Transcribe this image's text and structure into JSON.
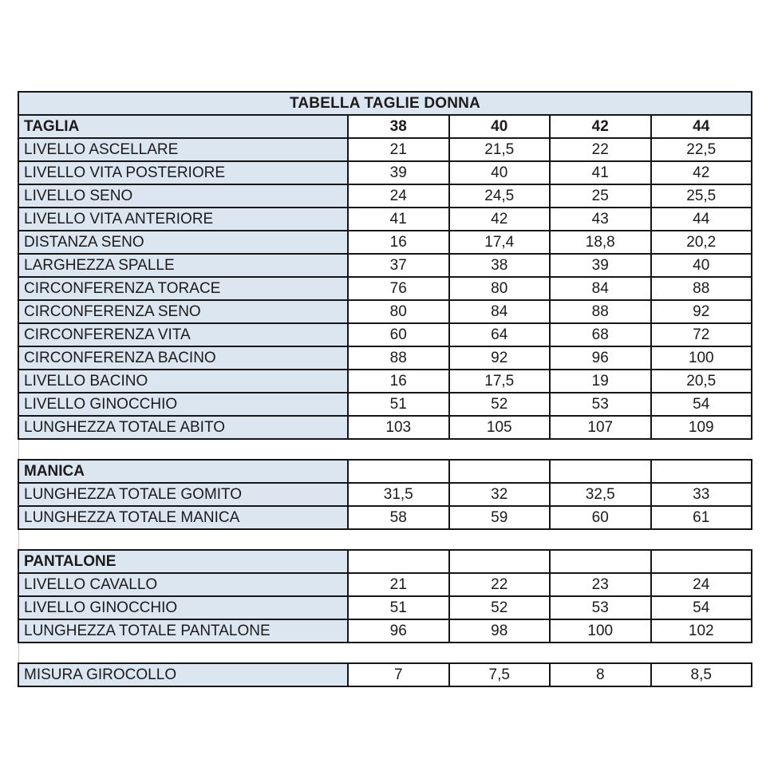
{
  "colors": {
    "header_fill": "#dce6f1",
    "border": "#161616",
    "text": "#1b1b1b",
    "gap_line": "#c8c8c8",
    "cell_background": "#ffffff"
  },
  "table": {
    "title": "TABELLA TAGLIE DONNA",
    "size_header": {
      "label": "TAGLIA",
      "sizes": [
        "38",
        "40",
        "42",
        "44"
      ]
    },
    "sections": [
      {
        "id": "corpo",
        "header": null,
        "rows": [
          {
            "label": "LIVELLO ASCELLARE",
            "values": [
              "21",
              "21,5",
              "22",
              "22,5"
            ]
          },
          {
            "label": "LIVELLO VITA POSTERIORE",
            "values": [
              "39",
              "40",
              "41",
              "42"
            ]
          },
          {
            "label": "LIVELLO SENO",
            "values": [
              "24",
              "24,5",
              "25",
              "25,5"
            ]
          },
          {
            "label": "LIVELLO VITA ANTERIORE",
            "values": [
              "41",
              "42",
              "43",
              "44"
            ]
          },
          {
            "label": "DISTANZA SENO",
            "values": [
              "16",
              "17,4",
              "18,8",
              "20,2"
            ]
          },
          {
            "label": "LARGHEZZA SPALLE",
            "values": [
              "37",
              "38",
              "39",
              "40"
            ]
          },
          {
            "label": "CIRCONFERENZA TORACE",
            "values": [
              "76",
              "80",
              "84",
              "88"
            ]
          },
          {
            "label": "CIRCONFERENZA SENO",
            "values": [
              "80",
              "84",
              "88",
              "92"
            ]
          },
          {
            "label": "CIRCONFERENZA VITA",
            "values": [
              "60",
              "64",
              "68",
              "72"
            ]
          },
          {
            "label": "CIRCONFERENZA BACINO",
            "values": [
              "88",
              "92",
              "96",
              "100"
            ]
          },
          {
            "label": "LIVELLO BACINO",
            "values": [
              "16",
              "17,5",
              "19",
              "20,5"
            ]
          },
          {
            "label": "LIVELLO GINOCCHIO",
            "values": [
              "51",
              "52",
              "53",
              "54"
            ]
          },
          {
            "label": "LUNGHEZZA TOTALE ABITO",
            "values": [
              "103",
              "105",
              "107",
              "109"
            ]
          }
        ]
      },
      {
        "id": "manica",
        "header": "MANICA",
        "rows": [
          {
            "label": "LUNGHEZZA TOTALE GOMITO",
            "values": [
              "31,5",
              "32",
              "32,5",
              "33"
            ]
          },
          {
            "label": "LUNGHEZZA TOTALE MANICA",
            "values": [
              "58",
              "59",
              "60",
              "61"
            ]
          }
        ]
      },
      {
        "id": "pantalone",
        "header": "PANTALONE",
        "rows": [
          {
            "label": "LIVELLO CAVALLO",
            "values": [
              "21",
              "22",
              "23",
              "24"
            ]
          },
          {
            "label": "LIVELLO GINOCCHIO",
            "values": [
              "51",
              "52",
              "53",
              "54"
            ]
          },
          {
            "label": "LUNGHEZZA TOTALE PANTALONE",
            "values": [
              "96",
              "98",
              "100",
              "102"
            ]
          }
        ]
      },
      {
        "id": "girocollo",
        "header": null,
        "rows": [
          {
            "label": "MISURA GIROCOLLO",
            "values": [
              "7",
              "7,5",
              "8",
              "8,5"
            ]
          }
        ]
      }
    ]
  }
}
